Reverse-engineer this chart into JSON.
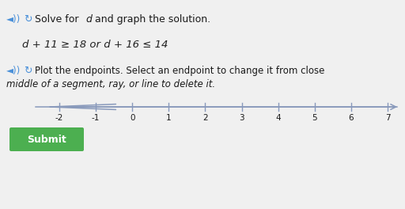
{
  "background_color": "#f0f0f0",
  "text_color": "#1a1a1a",
  "equation_color": "#222222",
  "icon_color": "#4a90d9",
  "line_color": "#8899bb",
  "submit_bg": "#4caf50",
  "submit_text": "Submit",
  "submit_text_color": "#ffffff",
  "tick_labels": [
    -2,
    -1,
    0,
    1,
    2,
    3,
    4,
    5,
    6,
    7
  ],
  "figsize": [
    5.12,
    2.64
  ],
  "dpi": 100
}
